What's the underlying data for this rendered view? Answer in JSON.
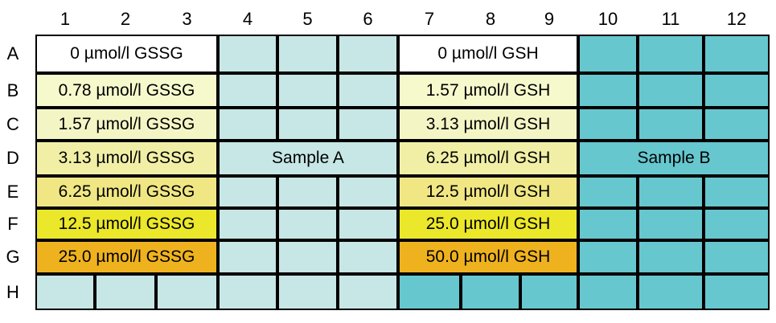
{
  "columns": [
    "1",
    "2",
    "3",
    "4",
    "5",
    "6",
    "7",
    "8",
    "9",
    "10",
    "11",
    "12"
  ],
  "rows": [
    "A",
    "B",
    "C",
    "D",
    "E",
    "F",
    "G",
    "H"
  ],
  "standards_gssg": [
    {
      "row": "A",
      "label": "0 µmol/l GSSG",
      "color": "#ffffff"
    },
    {
      "row": "B",
      "label": "0.78 µmol/l GSSG",
      "color": "#f5f9cc"
    },
    {
      "row": "C",
      "label": "1.57 µmol/l GSSG",
      "color": "#f3f5c5"
    },
    {
      "row": "D",
      "label": "3.13 µmol/l GSSG",
      "color": "#f1efa6"
    },
    {
      "row": "E",
      "label": "6.25 µmol/l GSSG",
      "color": "#f0e784"
    },
    {
      "row": "F",
      "label": "12.5 µmol/l GSSG",
      "color": "#ebe72a"
    },
    {
      "row": "G",
      "label": "25.0 µmol/l GSSG",
      "color": "#efb21f"
    }
  ],
  "standards_gsh": [
    {
      "row": "A",
      "label": "0 µmol/l GSH",
      "color": "#ffffff"
    },
    {
      "row": "B",
      "label": "1.57 µmol/l GSH",
      "color": "#f5f9cc"
    },
    {
      "row": "C",
      "label": "3.13 µmol/l GSH",
      "color": "#f3f5c5"
    },
    {
      "row": "D",
      "label": "6.25 µmol/l GSH",
      "color": "#f1efa6"
    },
    {
      "row": "E",
      "label": "12.5 µmol/l GSH",
      "color": "#f0e784"
    },
    {
      "row": "F",
      "label": "25.0 µmol/l GSH",
      "color": "#ebe72a"
    },
    {
      "row": "G",
      "label": "50.0 µmol/l GSH",
      "color": "#efb21f"
    }
  ],
  "sample_a": {
    "label": "Sample A",
    "color": "#c7e6e6"
  },
  "sample_b": {
    "label": "Sample B",
    "color": "#66c7cf"
  }
}
